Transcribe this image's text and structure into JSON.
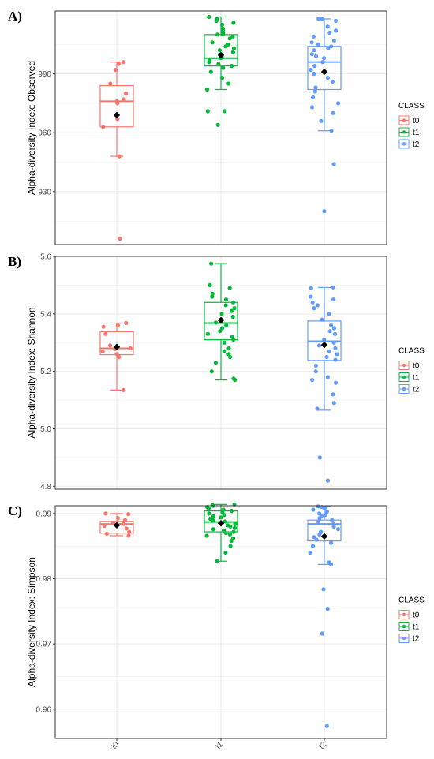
{
  "colors": {
    "t0": "#F8766D",
    "t1": "#00BA38",
    "t2": "#619CFF",
    "grid": "#ebebeb",
    "mean": "#000000"
  },
  "chart_data": [
    {
      "type": "box",
      "panel": "A)",
      "ylabel": "Alpha-diversity Index: Observed",
      "ylim": [
        903,
        1022
      ],
      "yticks": [
        930,
        960,
        990
      ],
      "categories": [
        "t0",
        "t1",
        "t2"
      ],
      "legend": {
        "title": "CLASS",
        "entries": [
          "t0",
          "t1",
          "t2"
        ],
        "position": "right"
      },
      "boxes": [
        {
          "name": "t0",
          "min": 948,
          "q1": 963,
          "median": 976,
          "q3": 984,
          "max": 996,
          "mean": 969,
          "points": [
            996,
            995,
            992,
            985,
            980,
            977,
            976,
            975,
            967,
            963,
            948,
            906
          ]
        },
        {
          "name": "t1",
          "min": 982,
          "q1": 994,
          "median": 998,
          "q3": 1010,
          "max": 1019,
          "mean": 999.5,
          "points": [
            1019,
            1018,
            1017,
            1016,
            1015,
            1013,
            1012,
            1011,
            1010,
            1010,
            1009,
            1008,
            1006,
            1005,
            1004,
            1003,
            1002,
            1001,
            1000,
            999,
            998,
            997,
            996,
            995,
            994,
            993,
            991,
            988,
            985,
            982,
            971,
            971,
            964
          ]
        },
        {
          "name": "t2",
          "min": 961,
          "q1": 982,
          "median": 996,
          "q3": 1004,
          "max": 1018,
          "mean": 991,
          "points": [
            1018,
            1018,
            1017,
            1014,
            1012,
            1011,
            1009,
            1007,
            1006,
            1005,
            1004,
            1003,
            1002,
            1000,
            999,
            998,
            996,
            994,
            992,
            990,
            988,
            986,
            983,
            981,
            978,
            975,
            973,
            970,
            966,
            961,
            944,
            920
          ]
        }
      ]
    },
    {
      "type": "box",
      "panel": "B)",
      "ylabel": "Alpha-diversity Index: Shannon",
      "ylim": [
        4.79,
        5.6
      ],
      "yticks": [
        4.8,
        5.0,
        5.2,
        5.4,
        5.6
      ],
      "ytick_labels": [
        "4.8",
        "5.0",
        "5.2",
        "5.4",
        "5.6"
      ],
      "categories": [
        "t0",
        "t1",
        "t2"
      ],
      "legend": {
        "title": "CLASS",
        "entries": [
          "t0",
          "t1",
          "t2"
        ],
        "position": "right"
      },
      "boxes": [
        {
          "name": "t0",
          "min": 5.135,
          "q1": 5.258,
          "median": 5.28,
          "q3": 5.338,
          "max": 5.368,
          "mean": 5.285,
          "points": [
            5.368,
            5.36,
            5.355,
            5.33,
            5.29,
            5.28,
            5.278,
            5.27,
            5.26,
            5.25,
            5.135
          ]
        },
        {
          "name": "t1",
          "min": 5.17,
          "q1": 5.31,
          "median": 5.368,
          "q3": 5.44,
          "max": 5.575,
          "mean": 5.378,
          "points": [
            5.575,
            5.5,
            5.49,
            5.47,
            5.46,
            5.45,
            5.44,
            5.43,
            5.42,
            5.41,
            5.4,
            5.39,
            5.38,
            5.37,
            5.36,
            5.35,
            5.34,
            5.33,
            5.32,
            5.31,
            5.3,
            5.28,
            5.27,
            5.26,
            5.25,
            5.23,
            5.2,
            5.175,
            5.17
          ]
        },
        {
          "name": "t2",
          "min": 5.065,
          "q1": 5.238,
          "median": 5.305,
          "q3": 5.375,
          "max": 5.492,
          "mean": 5.292,
          "points": [
            5.492,
            5.49,
            5.46,
            5.45,
            5.44,
            5.43,
            5.42,
            5.4,
            5.38,
            5.36,
            5.35,
            5.34,
            5.33,
            5.31,
            5.3,
            5.29,
            5.28,
            5.27,
            5.26,
            5.25,
            5.24,
            5.22,
            5.2,
            5.18,
            5.17,
            5.16,
            5.12,
            5.09,
            5.07,
            4.9,
            4.82
          ]
        }
      ]
    },
    {
      "type": "box",
      "panel": "C)",
      "ylabel": "Alpha-diversity Index: Simpson",
      "ylim": [
        0.9555,
        0.9912
      ],
      "yticks": [
        0.96,
        0.97,
        0.98,
        0.99
      ],
      "ytick_labels": [
        "0.96",
        "0.97",
        "0.98",
        "0.99"
      ],
      "categories": [
        "t0",
        "t1",
        "t2"
      ],
      "xtick_labels": [
        "t0",
        "t1",
        "t2"
      ],
      "legend": {
        "title": "CLASS",
        "entries": [
          "t0",
          "t1",
          "t2"
        ],
        "position": "right"
      },
      "boxes": [
        {
          "name": "t0",
          "min": 0.9866,
          "q1": 0.987,
          "median": 0.9884,
          "q3": 0.9888,
          "max": 0.99,
          "mean": 0.9882,
          "points": [
            0.99,
            0.9899,
            0.9893,
            0.989,
            0.9886,
            0.9884,
            0.9881,
            0.9877,
            0.9872,
            0.9869,
            0.9866
          ]
        },
        {
          "name": "t1",
          "min": 0.9827,
          "q1": 0.9872,
          "median": 0.9887,
          "q3": 0.9904,
          "max": 0.9914,
          "mean": 0.9885,
          "points": [
            0.9914,
            0.9913,
            0.9912,
            0.991,
            0.9908,
            0.9906,
            0.9904,
            0.9902,
            0.99,
            0.9898,
            0.9896,
            0.9894,
            0.9892,
            0.989,
            0.9888,
            0.9886,
            0.9884,
            0.9882,
            0.988,
            0.9878,
            0.9876,
            0.9874,
            0.9872,
            0.987,
            0.9868,
            0.9866,
            0.9862,
            0.9858,
            0.985,
            0.984,
            0.9827
          ]
        },
        {
          "name": "t2",
          "min": 0.9822,
          "q1": 0.9858,
          "median": 0.9884,
          "q3": 0.989,
          "max": 0.9911,
          "mean": 0.9865,
          "points": [
            0.9911,
            0.991,
            0.9908,
            0.9906,
            0.9903,
            0.99,
            0.9898,
            0.9896,
            0.9893,
            0.989,
            0.9887,
            0.9884,
            0.988,
            0.9876,
            0.9872,
            0.9868,
            0.9864,
            0.986,
            0.9855,
            0.985,
            0.984,
            0.9825,
            0.9822,
            0.9784,
            0.9754,
            0.9716,
            0.9574
          ]
        }
      ]
    }
  ]
}
